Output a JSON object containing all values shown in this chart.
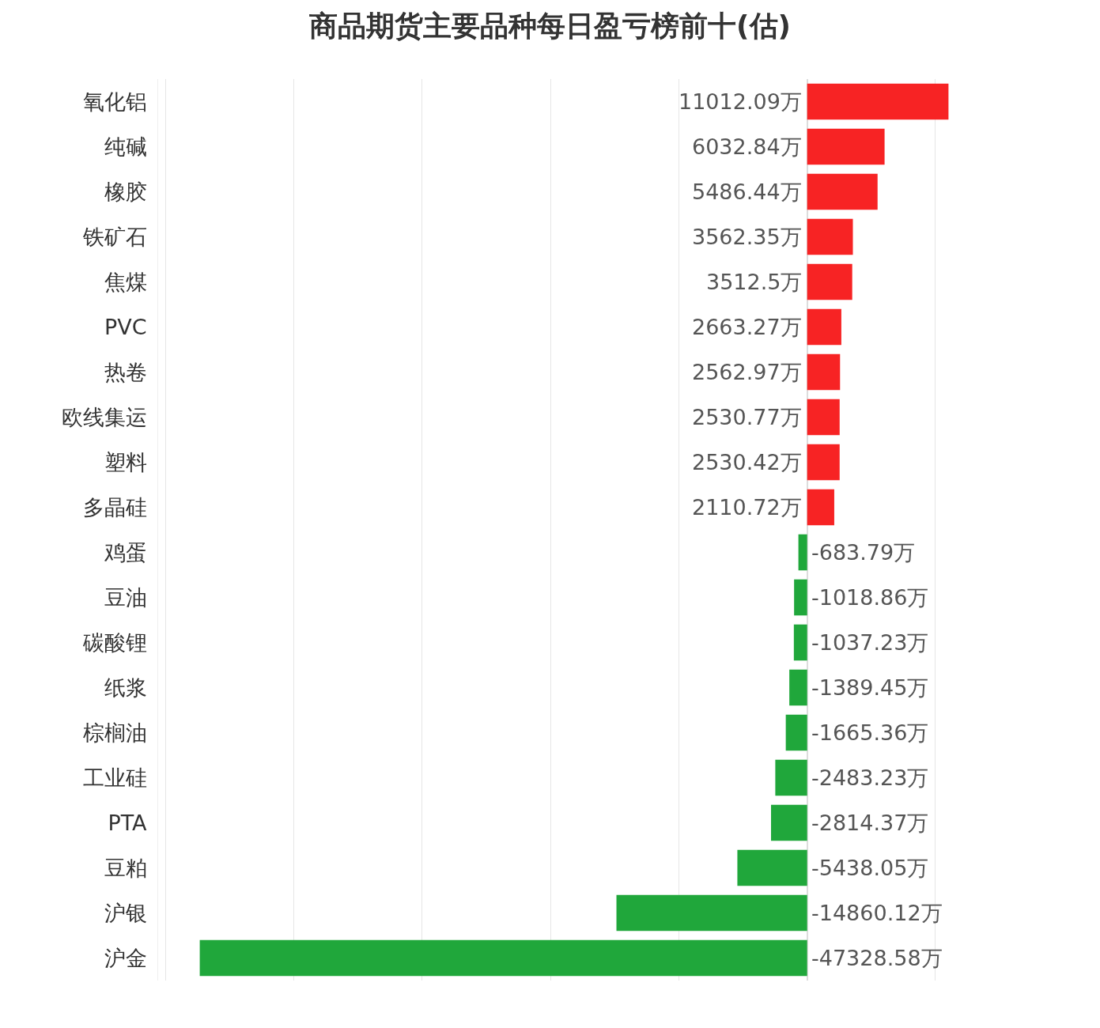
{
  "chart_data": {
    "type": "bar",
    "orientation": "horizontal",
    "title": "商品期货主要品种每日盈亏榜前十(估)",
    "categories": [
      "氧化铝",
      "纯碱",
      "橡胶",
      "铁矿石",
      "焦煤",
      "PVC",
      "热卷",
      "欧线集运",
      "塑料",
      "多晶硅",
      "鸡蛋",
      "豆油",
      "碳酸锂",
      "纸浆",
      "棕榈油",
      "工业硅",
      "PTA",
      "豆粕",
      "沪银",
      "沪金"
    ],
    "values": [
      11012.09,
      6032.84,
      5486.44,
      3562.35,
      3512.5,
      2663.27,
      2562.97,
      2530.77,
      2530.42,
      2110.72,
      -683.79,
      -1018.86,
      -1037.23,
      -1389.45,
      -1665.36,
      -2483.23,
      -2814.37,
      -5438.05,
      -14860.12,
      -47328.58
    ],
    "value_labels": [
      "11012.09万",
      "6032.84万",
      "5486.44万",
      "3562.35万",
      "3512.5万",
      "2663.27万",
      "2562.97万",
      "2530.77万",
      "2530.42万",
      "2110.72万",
      "-683.79万",
      "-1018.86万",
      "-1037.23万",
      "-1389.45万",
      "-1665.36万",
      "-2483.23万",
      "-2814.37万",
      "-5438.05万",
      "-14860.12万",
      "-47328.58万"
    ],
    "colors": [
      "#f72324",
      "#f72324",
      "#f72324",
      "#f72324",
      "#f72324",
      "#f72324",
      "#f72324",
      "#f72324",
      "#f72324",
      "#f72324",
      "#20a73b",
      "#20a73b",
      "#20a73b",
      "#20a73b",
      "#20a73b",
      "#20a73b",
      "#20a73b",
      "#20a73b",
      "#20a73b",
      "#20a73b"
    ],
    "grid": "x",
    "tick_labels": "y"
  }
}
